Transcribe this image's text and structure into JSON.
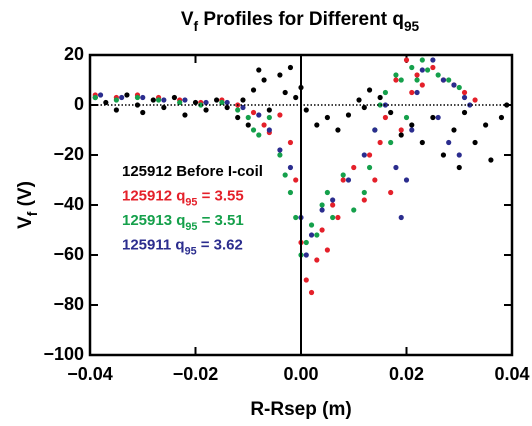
{
  "chart_data": {
    "type": "scatter",
    "title": [
      [
        "V",
        0
      ],
      [
        "f",
        1
      ],
      [
        " Profiles for Different q",
        0
      ],
      [
        "95",
        1
      ]
    ],
    "xlabel": "R-Rsep (m)",
    "ylabel": [
      [
        "V",
        0
      ],
      [
        "f",
        1
      ],
      [
        " (V)",
        0
      ]
    ],
    "xlim": [
      -0.04,
      0.04
    ],
    "xticks": [
      {
        "value": -0.04,
        "label": "−0.04"
      },
      {
        "value": -0.02,
        "label": "−0.02"
      },
      {
        "value": 0,
        "label": "0.00"
      },
      {
        "value": 0.02,
        "label": "0.02"
      },
      {
        "value": 0.04,
        "label": "0.04"
      }
    ],
    "ylim": [
      -100,
      20
    ],
    "yticks": [
      {
        "value": -100,
        "label": "−100"
      },
      {
        "value": -80,
        "label": "−80"
      },
      {
        "value": -60,
        "label": "−60"
      },
      {
        "value": -40,
        "label": "−40"
      },
      {
        "value": -20,
        "label": "−20"
      },
      0,
      20
    ],
    "reference_lines": [
      {
        "axis": "y",
        "value": 0,
        "style": "dotted"
      },
      {
        "axis": "x",
        "value": 0,
        "style": "solid"
      }
    ],
    "series": [
      {
        "name": [
          [
            "125912 Before I-coil",
            0
          ]
        ],
        "color": "#000000",
        "x": [
          -0.039,
          -0.037,
          -0.035,
          -0.033,
          -0.031,
          -0.03,
          -0.028,
          -0.026,
          -0.024,
          -0.022,
          -0.02,
          -0.018,
          -0.016,
          -0.014,
          -0.012,
          -0.011,
          -0.01,
          -0.009,
          -0.008,
          -0.007,
          -0.006,
          -0.004,
          -0.003,
          -0.002,
          -0.001,
          0.0,
          0.001,
          0.003,
          0.005,
          0.007,
          0.009,
          0.011,
          0.012,
          0.013,
          0.015,
          0.017,
          0.019,
          0.021,
          0.023,
          0.025,
          0.027,
          0.029,
          0.03,
          0.031,
          0.033,
          0.035,
          0.036,
          0.038,
          0.039
        ],
        "values": [
          3,
          1,
          -2,
          4,
          0,
          -3,
          2,
          -1,
          3,
          -4,
          1,
          -2,
          2,
          -1,
          -5,
          2,
          -8,
          6,
          14,
          10,
          -2,
          12,
          5,
          15,
          3,
          7,
          -2,
          -8,
          -5,
          -10,
          -4,
          2,
          -1,
          6,
          3,
          -3,
          -12,
          -8,
          -15,
          -5,
          -20,
          -10,
          -25,
          -3,
          -15,
          -8,
          -22,
          -5,
          0
        ]
      },
      {
        "name": [
          [
            "125912 q",
            0
          ],
          [
            "95",
            1
          ],
          [
            " = 3.55",
            0
          ]
        ],
        "color": "#e4202a",
        "x": [
          -0.039,
          -0.035,
          -0.031,
          -0.027,
          -0.023,
          -0.019,
          -0.015,
          -0.012,
          -0.009,
          -0.007,
          -0.006,
          -0.004,
          -0.002,
          -0.001,
          0.0,
          0.001,
          0.002,
          0.003,
          0.004,
          0.005,
          0.006,
          0.007,
          0.008,
          0.01,
          0.012,
          0.013,
          0.014,
          0.015,
          0.016,
          0.017,
          0.018,
          0.019,
          0.02,
          0.021,
          0.022,
          0.023,
          0.025,
          0.027,
          0.029,
          0.031,
          0.033
        ],
        "values": [
          4,
          3,
          4,
          3,
          2,
          1,
          2,
          0,
          -3,
          -8,
          -11,
          -4,
          -15,
          -30,
          -55,
          -70,
          -75,
          -62,
          -50,
          -58,
          -40,
          -45,
          -30,
          -25,
          -38,
          -20,
          -30,
          -15,
          -5,
          -35,
          10,
          -10,
          18,
          5,
          12,
          8,
          15,
          10,
          8,
          5,
          2
        ]
      },
      {
        "name": [
          [
            "125913 q",
            0
          ],
          [
            "95",
            1
          ],
          [
            " = 3.51",
            0
          ]
        ],
        "color": "#15a04b",
        "x": [
          -0.039,
          -0.035,
          -0.031,
          -0.027,
          -0.023,
          -0.019,
          -0.015,
          -0.012,
          -0.01,
          -0.009,
          -0.008,
          -0.006,
          -0.004,
          -0.003,
          -0.002,
          -0.001,
          0.0,
          0.001,
          0.002,
          0.003,
          0.004,
          0.005,
          0.006,
          0.008,
          0.01,
          0.012,
          0.013,
          0.014,
          0.015,
          0.016,
          0.017,
          0.018,
          0.019,
          0.02,
          0.021,
          0.022,
          0.023,
          0.024,
          0.026,
          0.028,
          0.03
        ],
        "values": [
          3,
          2,
          3,
          2,
          1,
          0,
          1,
          -2,
          -5,
          -10,
          -12,
          -5,
          -20,
          -28,
          -35,
          -45,
          -60,
          -55,
          -48,
          -52,
          -40,
          -35,
          -45,
          -28,
          -42,
          -35,
          -25,
          -10,
          0,
          5,
          -15,
          12,
          10,
          -5,
          15,
          10,
          18,
          14,
          12,
          10,
          7
        ]
      },
      {
        "name": [
          [
            "125911 q",
            0
          ],
          [
            "95",
            1
          ],
          [
            " = 3.62",
            0
          ]
        ],
        "color": "#2b2d8e",
        "x": [
          -0.038,
          -0.034,
          -0.03,
          -0.026,
          -0.022,
          -0.018,
          -0.014,
          -0.011,
          -0.008,
          -0.006,
          -0.004,
          -0.002,
          0.0,
          0.001,
          0.002,
          0.004,
          0.006,
          0.009,
          0.012,
          0.014,
          0.016,
          0.018,
          0.019,
          0.02,
          0.021,
          0.022,
          0.023,
          0.025,
          0.026,
          0.027,
          0.028,
          0.029,
          0.03,
          0.031,
          0.032
        ],
        "values": [
          4,
          3,
          3,
          2,
          2,
          1,
          1,
          -1,
          -4,
          -10,
          -18,
          -25,
          -45,
          -60,
          -52,
          -42,
          -38,
          -30,
          -20,
          -10,
          0,
          -25,
          -45,
          -30,
          -10,
          5,
          14,
          18,
          -5,
          10,
          -15,
          8,
          -20,
          3,
          0
        ]
      }
    ]
  }
}
